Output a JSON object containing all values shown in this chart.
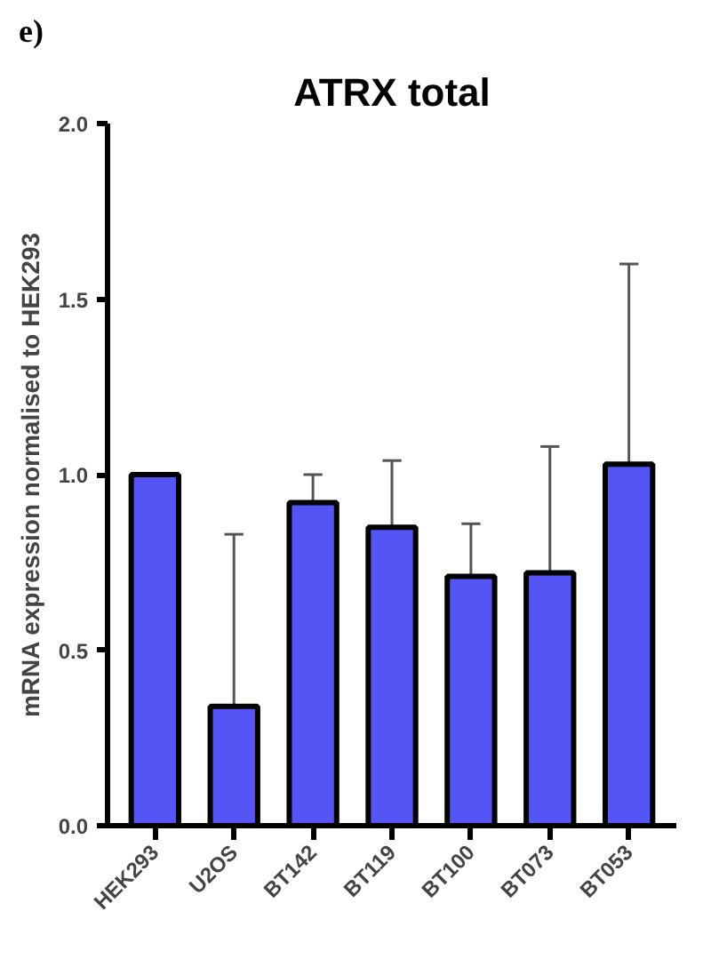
{
  "chart_data": {
    "type": "bar",
    "title": "ATRX total",
    "ylabel": "mRNA expression normalised to HEK293",
    "annotations": [
      "e)"
    ],
    "categories": [
      "HEK293",
      "U2OS",
      "BT142",
      "BT119",
      "BT100",
      "BT073",
      "BT053"
    ],
    "values": [
      1.0,
      0.34,
      0.92,
      0.85,
      0.71,
      0.72,
      1.03
    ],
    "errors": [
      null,
      [
        0.34,
        0.83
      ],
      [
        0.92,
        1.0
      ],
      [
        0.85,
        1.04
      ],
      [
        0.71,
        0.86
      ],
      [
        0.72,
        1.08
      ],
      [
        1.03,
        1.6
      ]
    ],
    "color": "#5555f5",
    "ylim": [
      0,
      2.0
    ],
    "yticks": [
      {
        "value": 0,
        "label": "0.0"
      },
      {
        "value": 0.5,
        "label": "0.5"
      },
      {
        "value": 1.0,
        "label": "1.0"
      },
      {
        "value": 1.5,
        "label": "1.5"
      },
      {
        "value": 2.0,
        "label": "2.0"
      }
    ],
    "grid": false
  }
}
